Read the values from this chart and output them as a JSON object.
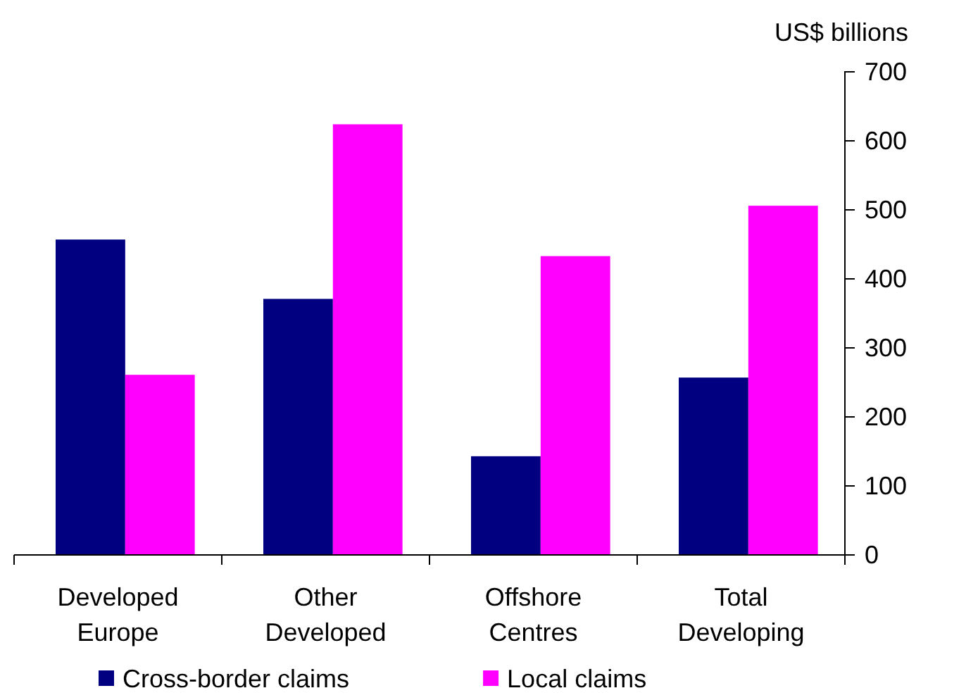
{
  "chart_data": {
    "type": "bar",
    "ylabel": "US$ billions",
    "categories": [
      "Developed Europe",
      "Other Developed",
      "Offshore Centres",
      "Total Developing"
    ],
    "series": [
      {
        "name": "Cross-border claims",
        "color": "#000080",
        "values": [
          457,
          371,
          143,
          257
        ]
      },
      {
        "name": "Local claims",
        "color": "#ff00ff",
        "values": [
          261,
          624,
          433,
          506
        ]
      }
    ],
    "ylim": [
      0,
      700
    ],
    "yticks": [
      0,
      100,
      200,
      300,
      400,
      500,
      600,
      700
    ],
    "grid": false,
    "legend": "bottom"
  }
}
